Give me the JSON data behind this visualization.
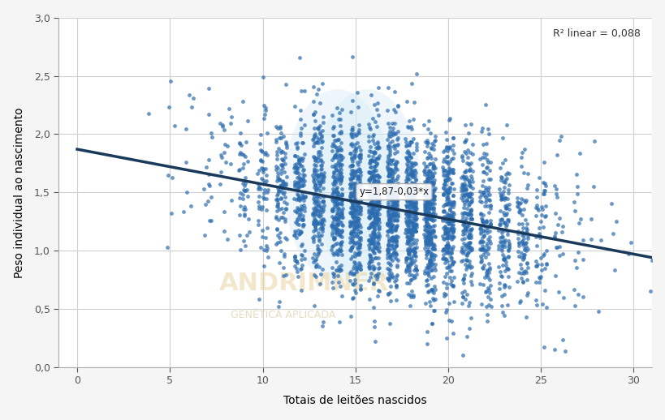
{
  "intercept": 1.87,
  "slope": -0.03,
  "x_min": 0,
  "x_max": 31,
  "y_min": 0.0,
  "y_max": 3.0,
  "xlabel": "Totais de leitões nascidos",
  "ylabel": "Peso individual ao nascimento",
  "r2_text": "R² linear = 0,088",
  "equation_text": "y=1,87-0,03*x",
  "scatter_color": "#2b6cb0",
  "line_color": "#1a3a5c",
  "background_color": "#f5f5f5",
  "plot_bg_color": "#ffffff",
  "grid_color": "#d0d0d0",
  "watermark_text1": "ANDRIMNER",
  "watermark_text2": "GENÉTICA APLICADA",
  "seed": 42,
  "n_points": 3483,
  "x_tick_step": 5,
  "y_ticks": [
    0.0,
    0.5,
    1.0,
    1.5,
    2.0,
    2.5,
    3.0
  ],
  "title_fontsize": 10,
  "axis_label_fontsize": 10,
  "tick_fontsize": 9
}
